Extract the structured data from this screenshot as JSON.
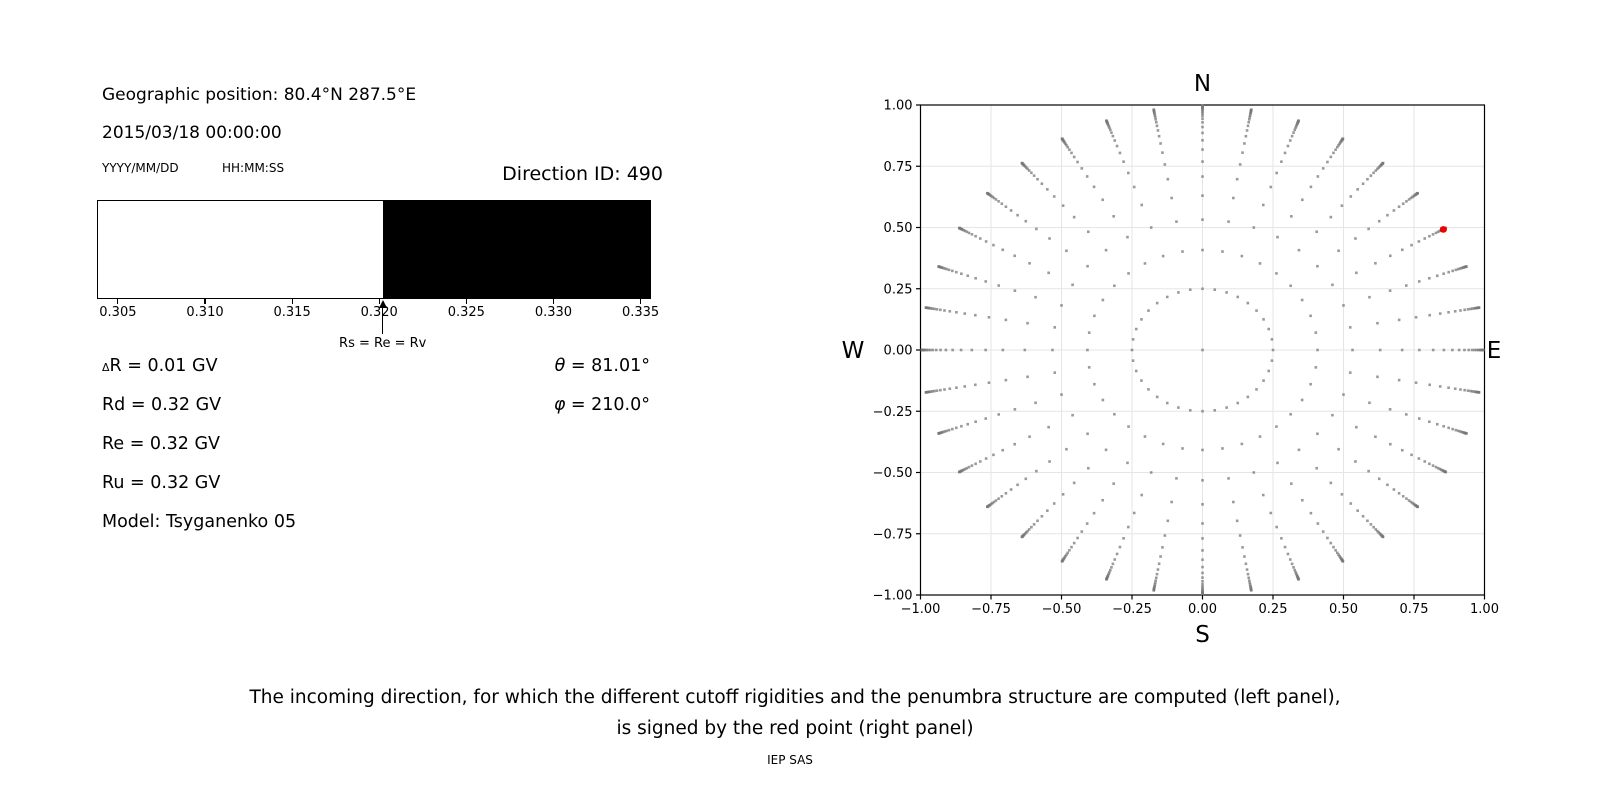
{
  "info": {
    "geo_position": "Geographic position: 80.4°N 287.5°E",
    "datetime": "2015/03/18 00:00:00",
    "date_format_hint": "YYYY/MM/DD",
    "time_format_hint": "HH:MM:SS",
    "direction_id": "Direction ID: 490"
  },
  "parameters": {
    "delta_symbol": "Δ",
    "delta_text": "R = 0.01 GV",
    "rd": "Rd = 0.32 GV",
    "re": "Re = 0.32 GV",
    "ru": "Ru = 0.32 GV",
    "model": "Model: Tsyganenko 05",
    "theta_symbol": "θ",
    "theta_text": " = 81.01°",
    "phi_symbol": "φ",
    "phi_text": " = 210.0°"
  },
  "caption": {
    "line1": "The incoming direction, for which the different cutoff rigidities and the penumbra structure are computed (left panel),",
    "line2": "is signed by the red point (right panel)",
    "credit": "IEP SAS"
  },
  "chart_data": [
    {
      "id": "penumbra-bar",
      "type": "bar",
      "x_min": 0.3038,
      "x_max": 0.3356,
      "xticks": [
        0.305,
        0.31,
        0.315,
        0.32,
        0.325,
        0.33,
        0.335
      ],
      "xtick_labels": [
        "0.305",
        "0.310",
        "0.315",
        "0.320",
        "0.325",
        "0.330",
        "0.335"
      ],
      "regions": [
        {
          "from": 0.3038,
          "to": 0.3202,
          "color": "#ffffff"
        },
        {
          "from": 0.3202,
          "to": 0.3356,
          "color": "#000000"
        }
      ],
      "arrow_x": 0.3202,
      "arrow_label": "Rs = Re = Rv",
      "units": "GV"
    },
    {
      "id": "direction-map",
      "type": "scatter",
      "compass": {
        "top": "N",
        "bottom": "S",
        "left": "W",
        "right": "E"
      },
      "xlim": [
        -1,
        1
      ],
      "ylim": [
        -1,
        1
      ],
      "xticks": [
        -1,
        -0.75,
        -0.5,
        -0.25,
        0,
        0.25,
        0.5,
        0.75,
        1
      ],
      "yticks": [
        1,
        0.75,
        0.5,
        0.25,
        0,
        -0.25,
        -0.5,
        -0.75,
        -1
      ],
      "xtick_labels": [
        "−1.00",
        "−0.75",
        "−0.50",
        "−0.25",
        "0.00",
        "0.25",
        "0.50",
        "0.75",
        "1.00"
      ],
      "ytick_labels": [
        "1.00",
        "0.75",
        "0.50",
        "0.25",
        "0.00",
        "−0.25",
        "−0.50",
        "−0.75",
        "−1.00"
      ],
      "grid": true,
      "grid_color": "#e5e5e5",
      "dot_color": "#787878",
      "dot_opacity": 0.75,
      "dot_size_px": 2.6,
      "azimuth_start_deg": 0,
      "azimuth_step_deg": 10,
      "azimuth_count": 36,
      "center_dot": true,
      "spoke_radii": [
        0.25,
        0.408,
        0.532,
        0.63,
        0.708,
        0.769,
        0.818,
        0.856,
        0.886,
        0.91,
        0.929,
        0.944,
        0.956,
        0.965,
        0.972,
        0.978,
        0.983,
        0.986,
        0.989,
        0.992,
        0.994,
        0.995,
        0.996
      ],
      "red_point": {
        "x": 0.854,
        "y": 0.492,
        "color": "#ee0000",
        "label": "selected incoming direction"
      }
    }
  ]
}
